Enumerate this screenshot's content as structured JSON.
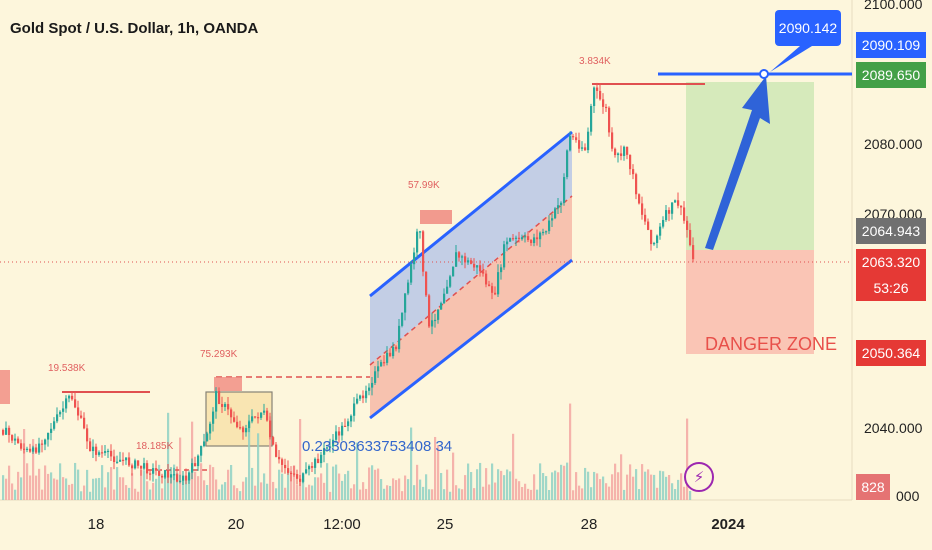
{
  "header": {
    "title": "Gold Spot / U.S. Dollar, 1h, OANDA"
  },
  "price_axis": {
    "ticks": [
      "2100.000",
      "2080.000",
      "2070.000",
      "2040.000",
      "000"
    ],
    "tags": [
      {
        "value": "2090.109",
        "color": "#2962ff"
      },
      {
        "value": "2089.650",
        "color": "#43a047"
      },
      {
        "value": "2064.943",
        "color": "#707070"
      },
      {
        "value": "2063.320",
        "color": "#e53935"
      },
      {
        "value": "53:26",
        "color": "#e53935"
      },
      {
        "value": "2050.364",
        "color": "#e53935"
      },
      {
        "value": "828",
        "color": "#e57373"
      }
    ]
  },
  "time_axis": {
    "ticks": [
      "18",
      "20",
      "12:00",
      "25",
      "28",
      "2024"
    ]
  },
  "annotations": {
    "target": "2090.142",
    "danger_zone": "DANGER ZONE",
    "fib_text": "0.23303633753408 34",
    "volume_labels": [
      "19.538K",
      "18.185K",
      "75.293K",
      "57.99K",
      "3.834K"
    ]
  },
  "icons": {
    "flash": "lightning-icon"
  },
  "colors": {
    "up": "#26a69a",
    "down": "#ef5350",
    "channel": "#2962ff",
    "profit_zone": "#c8e6b0",
    "loss_zone": "#f8b4a8",
    "background": "#fdf6dc"
  }
}
